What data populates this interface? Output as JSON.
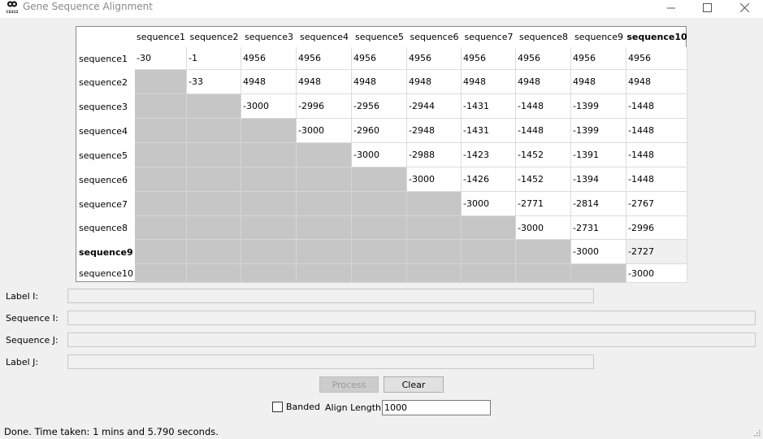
{
  "window": {
    "title": "Gene Sequence Alignment",
    "icon_text": "CS312",
    "controls": [
      "minimize-icon",
      "maximize-icon",
      "close-icon"
    ]
  },
  "matrix": {
    "columns": [
      "sequence1",
      "sequence2",
      "sequence3",
      "sequence4",
      "sequence5",
      "sequence6",
      "sequence7",
      "sequence8",
      "sequence9",
      "sequence10"
    ],
    "rows": [
      "sequence1",
      "sequence2",
      "sequence3",
      "sequence4",
      "sequence5",
      "sequence6",
      "sequence7",
      "sequence8",
      "sequence9",
      "sequence10"
    ],
    "selected_row": "sequence9",
    "selected_column": "sequence10",
    "values": [
      [
        "-30",
        "-1",
        "4956",
        "4956",
        "4956",
        "4956",
        "4956",
        "4956",
        "4956",
        "4956"
      ],
      [
        null,
        "-33",
        "4948",
        "4948",
        "4948",
        "4948",
        "4948",
        "4948",
        "4948",
        "4948"
      ],
      [
        null,
        null,
        "-3000",
        "-2996",
        "-2956",
        "-2944",
        "-1431",
        "-1448",
        "-1399",
        "-1448"
      ],
      [
        null,
        null,
        null,
        "-3000",
        "-2960",
        "-2948",
        "-1431",
        "-1448",
        "-1399",
        "-1448"
      ],
      [
        null,
        null,
        null,
        null,
        "-3000",
        "-2988",
        "-1423",
        "-1452",
        "-1391",
        "-1448"
      ],
      [
        null,
        null,
        null,
        null,
        null,
        "-3000",
        "-1426",
        "-1452",
        "-1394",
        "-1448"
      ],
      [
        null,
        null,
        null,
        null,
        null,
        null,
        "-3000",
        "-2771",
        "-2814",
        "-2767"
      ],
      [
        null,
        null,
        null,
        null,
        null,
        null,
        null,
        "-3000",
        "-2731",
        "-2996"
      ],
      [
        null,
        null,
        null,
        null,
        null,
        null,
        null,
        null,
        "-3000",
        "-2727"
      ],
      [
        null,
        null,
        null,
        null,
        null,
        null,
        null,
        null,
        null,
        "-3000"
      ]
    ]
  },
  "fields": {
    "label_i": {
      "label": "Label I:",
      "value": ""
    },
    "sequence_i": {
      "label": "Sequence I:",
      "value": ""
    },
    "sequence_j": {
      "label": "Sequence J:",
      "value": ""
    },
    "label_j": {
      "label": "Label J:",
      "value": ""
    }
  },
  "buttons": {
    "process": {
      "label": "Process",
      "enabled": false
    },
    "clear": {
      "label": "Clear",
      "enabled": true
    }
  },
  "options": {
    "banded_label": "Banded",
    "banded_checked": false,
    "align_length_label": "Align Length:",
    "align_length_value": "1000"
  },
  "status": "Done.  Time taken: 1 mins and 5.790 seconds."
}
